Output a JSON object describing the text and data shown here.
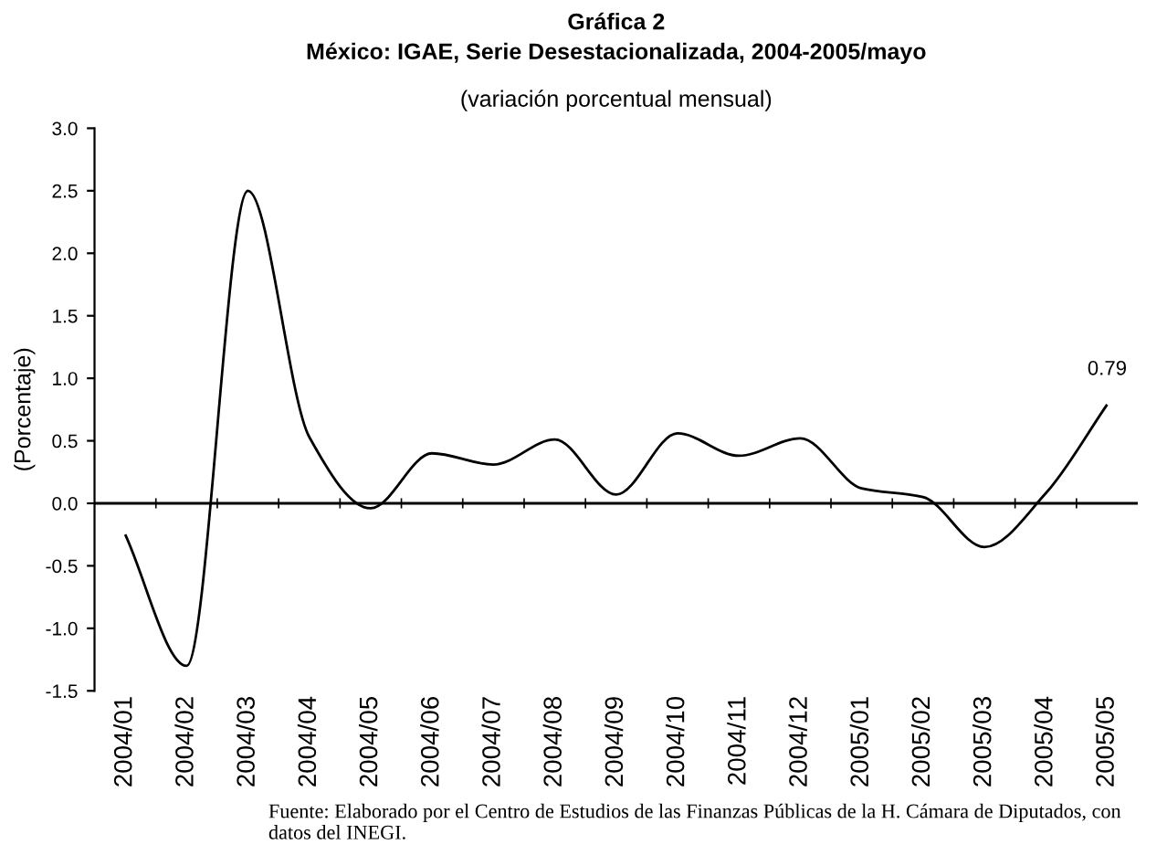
{
  "chart_data": {
    "type": "line",
    "title": "Gráfica 2\nMéxico: IGAE, Serie Desestacionalizada, 2004-2005/mayo",
    "subtitle": "(variación porcentual mensual)",
    "ylabel": "(Porcentaje)",
    "categories": [
      "2004/01",
      "2004/02",
      "2004/03",
      "2004/04",
      "2004/05",
      "2004/06",
      "2004/07",
      "2004/08",
      "2004/09",
      "2004/10",
      "2004/11",
      "2004/12",
      "2005/01",
      "2005/02",
      "2005/03",
      "2005/04",
      "2005/05"
    ],
    "series": [
      {
        "color": "#000000",
        "values": [
          -0.25,
          -1.3,
          2.5,
          0.53,
          -0.04,
          0.4,
          0.31,
          0.51,
          0.07,
          0.56,
          0.38,
          0.52,
          0.12,
          0.05,
          -0.35,
          0.08,
          0.79
        ]
      }
    ],
    "ylim": [
      -1.5,
      3.0
    ],
    "yticks": [
      {
        "value": -1.5,
        "label": "-1.5"
      },
      {
        "value": -1.0,
        "label": "-1.0"
      },
      {
        "value": -0.5,
        "label": "-0.5"
      },
      {
        "value": 0.0,
        "label": "0.0"
      },
      {
        "value": 0.5,
        "label": "0.5"
      },
      {
        "value": 1.0,
        "label": "1.0"
      },
      {
        "value": 1.5,
        "label": "1.5"
      },
      {
        "value": 2.0,
        "label": "2.0"
      },
      {
        "value": 2.5,
        "label": "2.5"
      },
      {
        "value": 3.0,
        "label": "3.0"
      }
    ],
    "annotations": [
      {
        "text": "0.79",
        "x": "2005/05",
        "y": 0.79
      },
      "Fuente: Elaborado por el Centro de Estudios de las Finanzas Públicas de la H. Cámara de Diputados, con datos del INEGI."
    ],
    "ref_lines": [
      {
        "axis": "y",
        "value": 0,
        "color": "#000000",
        "line_style": "solid"
      }
    ],
    "grid": false,
    "legend": false,
    "marker": "none",
    "line_style": "solid"
  }
}
